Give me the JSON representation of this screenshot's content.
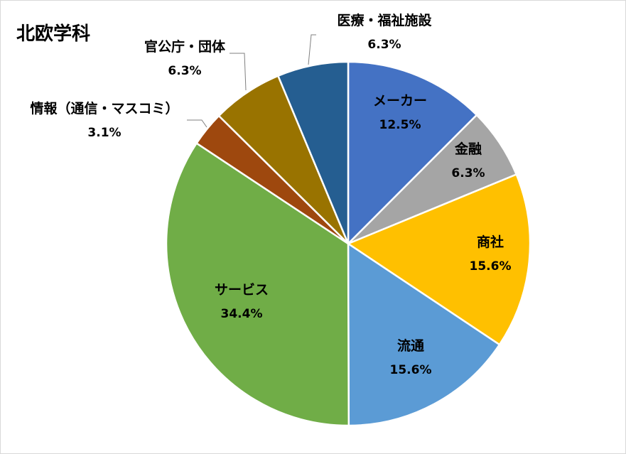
{
  "chart_data": {
    "type": "pie",
    "title": "北欧学科",
    "colors": {
      "メーカー": "#4472c4",
      "金融": "#a5a5a5",
      "商社": "#ffc000",
      "流通": "#5b9bd5",
      "サービス": "#70ad47",
      "情報（通信・マスコミ）": "#9e480e",
      "官公庁・団体": "#997300",
      "医療・福祉施設": "#255e91"
    },
    "slices": [
      {
        "label": "メーカー",
        "percent": 12.5,
        "display": "12.5%"
      },
      {
        "label": "金融",
        "percent": 6.3,
        "display": "6.3%"
      },
      {
        "label": "商社",
        "percent": 15.6,
        "display": "15.6%"
      },
      {
        "label": "流通",
        "percent": 15.6,
        "display": "15.6%"
      },
      {
        "label": "サービス",
        "percent": 34.4,
        "display": "34.4%"
      },
      {
        "label": "情報（通信・マスコミ）",
        "percent": 3.1,
        "display": "3.1%"
      },
      {
        "label": "官公庁・団体",
        "percent": 6.3,
        "display": "6.3%"
      },
      {
        "label": "医療・福祉施設",
        "percent": 6.3,
        "display": "6.3%"
      }
    ]
  }
}
